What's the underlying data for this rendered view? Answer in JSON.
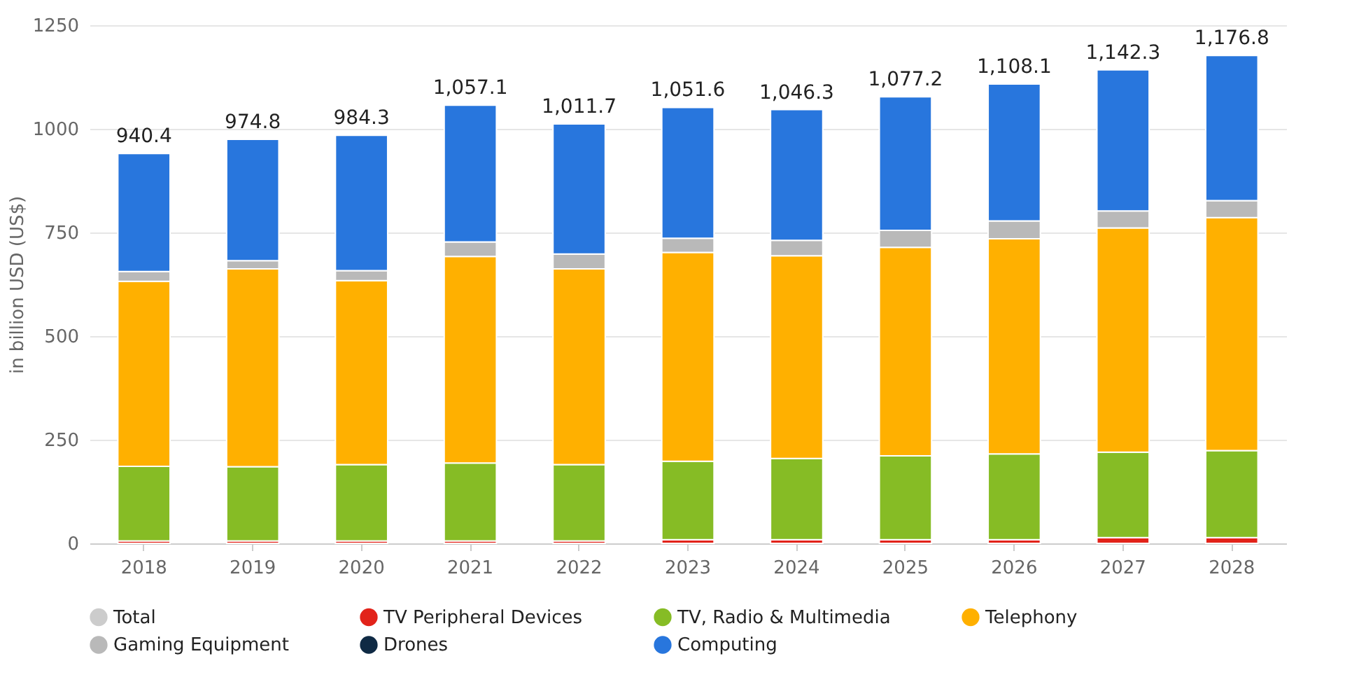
{
  "chart_data": {
    "type": "bar",
    "stacked": true,
    "ylabel": "in billion USD (US$)",
    "categories": [
      "2018",
      "2019",
      "2020",
      "2021",
      "2022",
      "2023",
      "2024",
      "2025",
      "2026",
      "2027",
      "2028"
    ],
    "series": [
      {
        "name": "Total",
        "color": "#cccccc",
        "values": [
          null,
          null,
          null,
          null,
          null,
          null,
          null,
          null,
          null,
          null,
          null
        ]
      },
      {
        "name": "TV Peripheral Devices",
        "color": "#e2231a",
        "values": [
          6,
          6,
          6,
          6,
          6,
          9,
          9,
          9,
          9,
          14,
          14
        ]
      },
      {
        "name": "TV, Radio & Multimedia",
        "color": "#86bc25",
        "values": [
          180,
          179,
          184,
          188,
          184,
          189,
          196,
          202,
          207,
          206,
          210
        ]
      },
      {
        "name": "Telephony",
        "color": "#ffb000",
        "values": [
          446,
          477,
          444,
          498,
          472,
          504,
          489,
          503,
          519,
          541,
          562
        ]
      },
      {
        "name": "Gaming Equipment",
        "color": "#b9b9b9",
        "values": [
          24,
          20,
          24,
          35,
          36,
          34,
          37,
          41,
          43,
          41,
          41
        ]
      },
      {
        "name": "Drones",
        "color": "#0f2a44",
        "values": [
          null,
          null,
          null,
          null,
          null,
          null,
          null,
          null,
          null,
          null,
          null
        ]
      },
      {
        "name": "Computing",
        "color": "#2876dd",
        "values": [
          284.4,
          292.8,
          326.3,
          330.1,
          313.7,
          315.6,
          315.3,
          322.2,
          330.1,
          340.3,
          349.8
        ]
      }
    ],
    "totals": [
      "940.4",
      "974.8",
      "984.3",
      "1,057.1",
      "1,011.7",
      "1,051.6",
      "1,046.3",
      "1,077.2",
      "1,108.1",
      "1,142.3",
      "1,176.8"
    ],
    "ylim": [
      0,
      1250
    ],
    "yticks": [
      0,
      250,
      500,
      750,
      1000,
      1250
    ],
    "grid": "y",
    "legend": "bottom"
  }
}
